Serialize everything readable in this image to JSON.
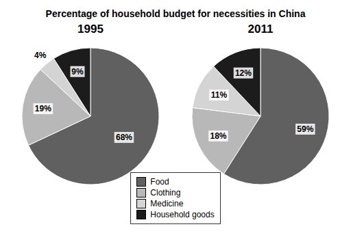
{
  "chart_data": {
    "type": "pie",
    "title": "Percentage of household budget for necessities in China",
    "categories": [
      "Food",
      "Clothing",
      "Medicine",
      "Household goods"
    ],
    "colors": [
      "#606060",
      "#b8b8b8",
      "#d4d4d4",
      "#1c1c1c"
    ],
    "series": [
      {
        "name": "1995",
        "values": [
          68,
          19,
          4,
          9
        ],
        "value_labels": [
          "68%",
          "19%",
          "4%",
          "9%"
        ]
      },
      {
        "name": "2011",
        "values": [
          59,
          18,
          11,
          12
        ],
        "value_labels": [
          "59%",
          "18%",
          "11%",
          "12%"
        ]
      }
    ],
    "data_labels": true,
    "legend": "bottom"
  }
}
